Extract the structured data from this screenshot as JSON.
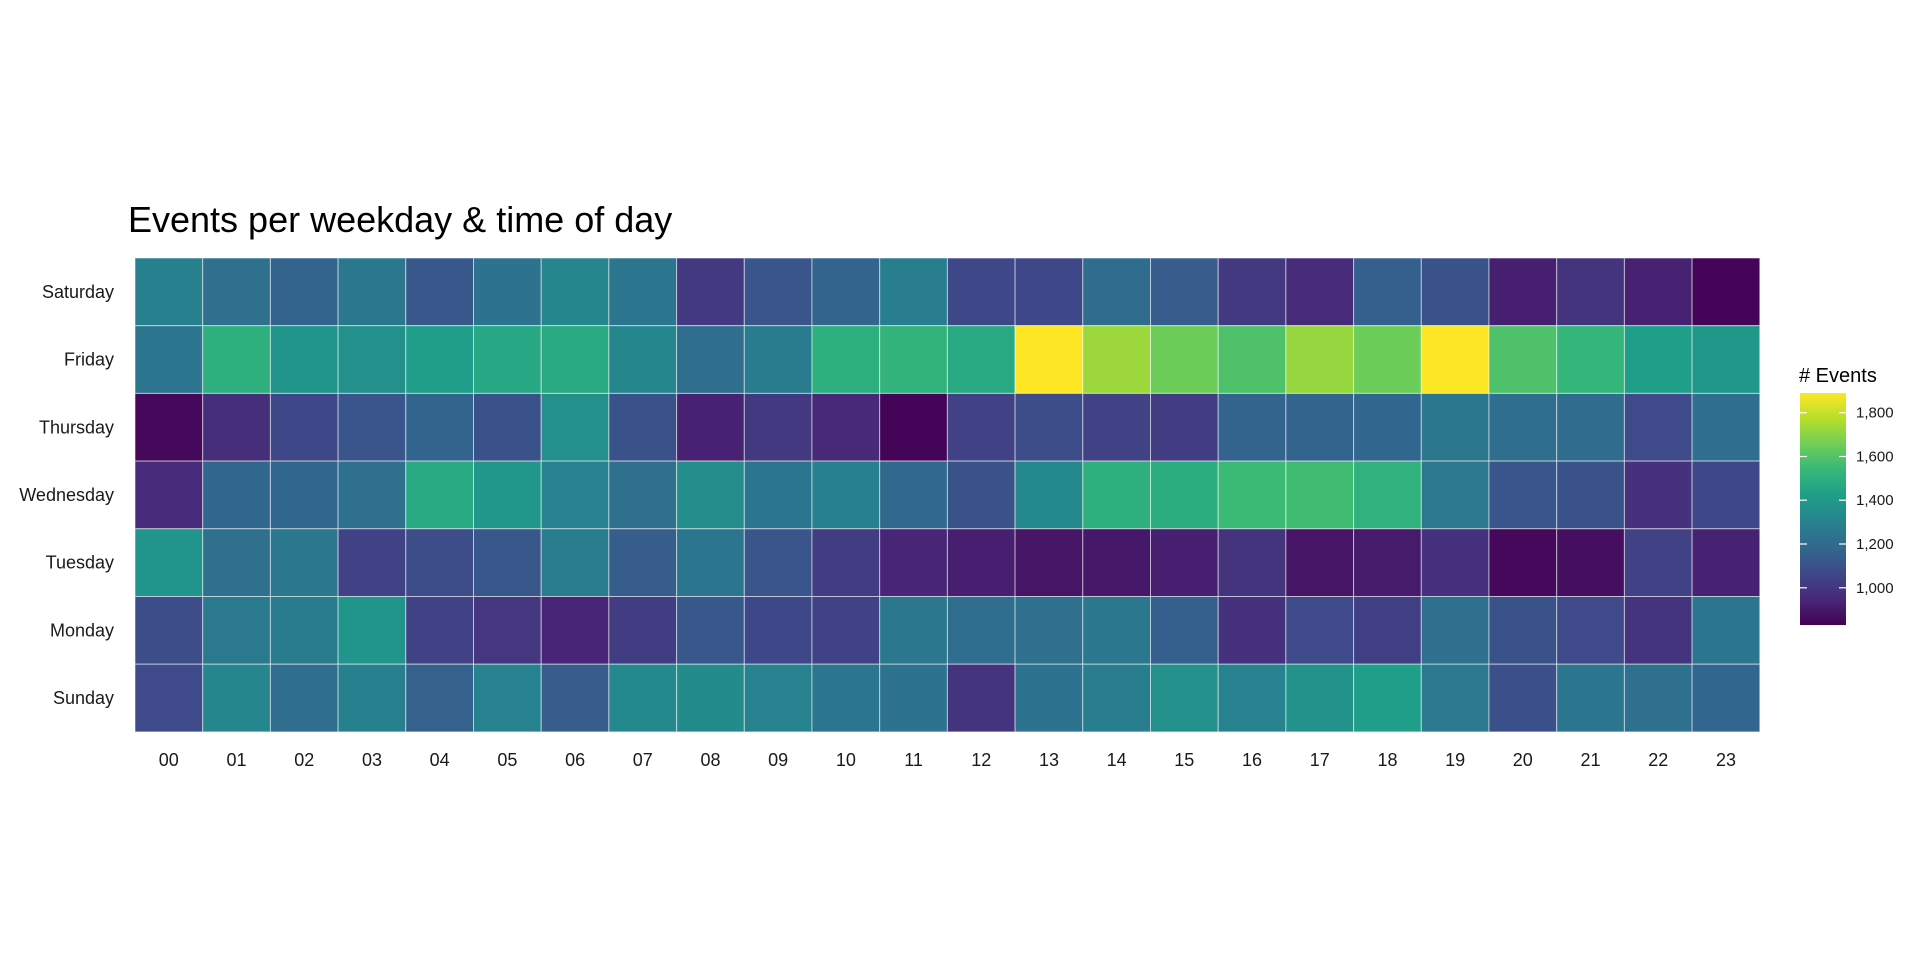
{
  "chart_data": {
    "type": "heatmap",
    "title": "Events per weekday & time of day",
    "x_categories": [
      "00",
      "01",
      "02",
      "03",
      "04",
      "05",
      "06",
      "07",
      "08",
      "09",
      "10",
      "11",
      "12",
      "13",
      "14",
      "15",
      "16",
      "17",
      "18",
      "19",
      "20",
      "21",
      "22",
      "23"
    ],
    "y_categories": [
      "Saturday",
      "Friday",
      "Thursday",
      "Wednesday",
      "Tuesday",
      "Monday",
      "Sunday"
    ],
    "values": [
      [
        1290,
        1220,
        1170,
        1250,
        1120,
        1230,
        1320,
        1240,
        1010,
        1110,
        1170,
        1280,
        1060,
        1060,
        1200,
        1140,
        1010,
        960,
        1150,
        1100,
        920,
        990,
        930,
        840
      ],
      [
        1240,
        1500,
        1380,
        1360,
        1420,
        1460,
        1470,
        1320,
        1210,
        1270,
        1500,
        1520,
        1470,
        1890,
        1730,
        1650,
        1590,
        1720,
        1650,
        1890,
        1590,
        1530,
        1420,
        1390
      ],
      [
        850,
        970,
        1060,
        1110,
        1170,
        1100,
        1360,
        1100,
        930,
        1010,
        950,
        840,
        1040,
        1080,
        1040,
        1020,
        1170,
        1170,
        1180,
        1250,
        1210,
        1200,
        1070,
        1210
      ],
      [
        960,
        1180,
        1180,
        1220,
        1470,
        1390,
        1300,
        1220,
        1350,
        1240,
        1290,
        1190,
        1100,
        1330,
        1500,
        1490,
        1550,
        1560,
        1510,
        1260,
        1110,
        1100,
        980,
        1060
      ],
      [
        1380,
        1220,
        1250,
        1040,
        1080,
        1120,
        1280,
        1140,
        1240,
        1110,
        1020,
        940,
        920,
        890,
        900,
        920,
        990,
        890,
        910,
        980,
        850,
        870,
        1040,
        930
      ],
      [
        1080,
        1260,
        1270,
        1380,
        1040,
        1000,
        940,
        1020,
        1120,
        1060,
        1040,
        1250,
        1210,
        1220,
        1250,
        1150,
        980,
        1070,
        1030,
        1220,
        1100,
        1070,
        990,
        1240
      ],
      [
        1070,
        1320,
        1210,
        1290,
        1160,
        1300,
        1140,
        1330,
        1340,
        1300,
        1240,
        1230,
        990,
        1230,
        1280,
        1360,
        1300,
        1370,
        1420,
        1260,
        1090,
        1240,
        1220,
        1180
      ]
    ],
    "color_scale": {
      "name": "viridis",
      "range": [
        830,
        1890
      ],
      "stops": [
        "#440154",
        "#482878",
        "#3e4989",
        "#31688e",
        "#26828e",
        "#1f9e89",
        "#35b779",
        "#6ece58",
        "#b5de2b",
        "#fde725"
      ]
    },
    "legend": {
      "title": "# Events",
      "ticks": [
        1000,
        1200,
        1400,
        1600,
        1800
      ],
      "tick_labels": [
        "1,000",
        "1,200",
        "1,400",
        "1,600",
        "1,800"
      ],
      "position": "right"
    }
  }
}
